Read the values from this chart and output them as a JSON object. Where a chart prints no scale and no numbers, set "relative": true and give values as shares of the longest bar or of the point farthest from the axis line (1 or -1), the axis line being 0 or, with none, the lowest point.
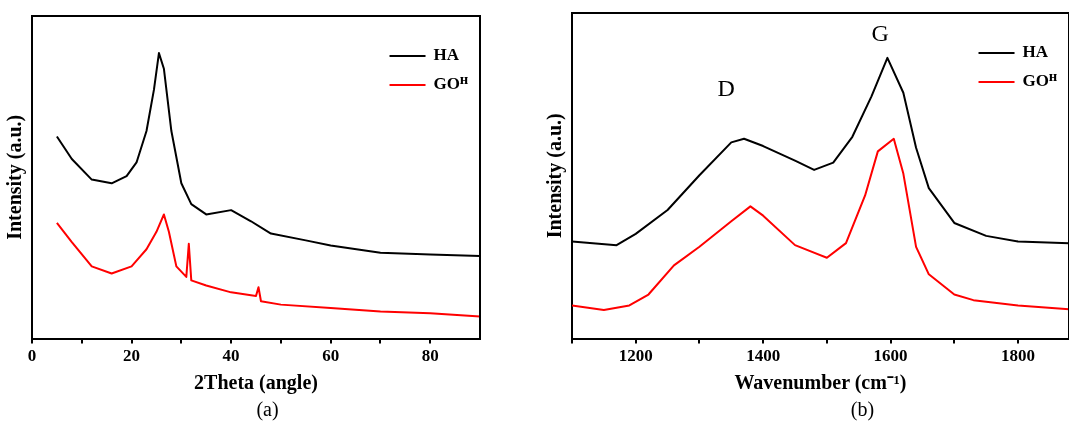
{
  "chart_data": [
    {
      "type": "line",
      "relative": true,
      "xlabel": "2Theta (angle)",
      "ylabel": "Intensity (a.u.)",
      "xlim": [
        0,
        90
      ],
      "xticks": [
        0,
        {
          "value": 10,
          "label": null
        },
        20,
        {
          "value": 30,
          "label": null
        },
        40,
        {
          "value": 50,
          "label": null
        },
        60,
        {
          "value": 70,
          "label": null
        },
        80
      ],
      "tick_labels": "x",
      "grid": false,
      "legend": "top right",
      "marker": "none",
      "line_style": "solid",
      "series": [
        {
          "name": "HA",
          "color": "#000000",
          "x": [
            5,
            8,
            12,
            16,
            19,
            21,
            23,
            24.5,
            25.5,
            26.5,
            28,
            30,
            32,
            35,
            40,
            44,
            48,
            55,
            60,
            70,
            80,
            90
          ],
          "values": [
            0.708,
            0.629,
            0.557,
            0.544,
            0.569,
            0.617,
            0.727,
            0.872,
            1.0,
            0.945,
            0.727,
            0.544,
            0.471,
            0.435,
            0.45,
            0.411,
            0.368,
            0.344,
            0.326,
            0.301,
            0.295,
            0.289
          ]
        },
        {
          "name": "GOᴴ",
          "color": "#ff0000",
          "x": [
            5,
            8,
            12,
            16,
            20,
            23,
            25,
            26.5,
            27.5,
            29,
            31,
            31.5,
            32,
            35,
            40,
            45,
            45.5,
            46,
            50,
            60,
            70,
            80,
            90
          ],
          "values": [
            0.405,
            0.338,
            0.253,
            0.228,
            0.253,
            0.313,
            0.374,
            0.435,
            0.374,
            0.253,
            0.216,
            0.332,
            0.204,
            0.186,
            0.162,
            0.149,
            0.18,
            0.131,
            0.119,
            0.107,
            0.095,
            0.089,
            0.077
          ]
        }
      ],
      "annotations": [
        "(a)"
      ]
    },
    {
      "type": "line",
      "relative": true,
      "xlabel": "Wavenumber (cm⁻¹)",
      "ylabel": "Intensity (a.u.)",
      "xlim": [
        1100,
        1880
      ],
      "xticks": [
        {
          "value": 1100,
          "label": null
        },
        1200,
        {
          "value": 1300,
          "label": null
        },
        1400,
        {
          "value": 1500,
          "label": null
        },
        1600,
        {
          "value": 1700,
          "label": null
        },
        1800
      ],
      "tick_labels": "x",
      "grid": false,
      "legend": "top right",
      "marker": "none",
      "line_style": "solid",
      "series": [
        {
          "name": "HA",
          "color": "#000000",
          "x": [
            1100,
            1170,
            1200,
            1250,
            1300,
            1350,
            1370,
            1400,
            1450,
            1480,
            1510,
            1540,
            1570,
            1595,
            1620,
            1640,
            1660,
            1700,
            1750,
            1800,
            1880
          ],
          "values": [
            0.346,
            0.333,
            0.373,
            0.458,
            0.582,
            0.699,
            0.712,
            0.686,
            0.634,
            0.601,
            0.627,
            0.719,
            0.863,
            1.0,
            0.876,
            0.68,
            0.536,
            0.412,
            0.366,
            0.346,
            0.34
          ]
        },
        {
          "name": "GOᴴ",
          "color": "#ff0000",
          "x": [
            1100,
            1150,
            1190,
            1220,
            1260,
            1300,
            1350,
            1380,
            1400,
            1450,
            1500,
            1530,
            1560,
            1580,
            1605,
            1620,
            1640,
            1660,
            1700,
            1730,
            1800,
            1880
          ],
          "values": [
            0.118,
            0.102,
            0.118,
            0.157,
            0.261,
            0.327,
            0.418,
            0.471,
            0.438,
            0.333,
            0.288,
            0.34,
            0.51,
            0.667,
            0.712,
            0.588,
            0.327,
            0.229,
            0.157,
            0.137,
            0.118,
            0.105
          ]
        }
      ],
      "annotations": [
        "D",
        "G",
        "(b)"
      ]
    }
  ]
}
